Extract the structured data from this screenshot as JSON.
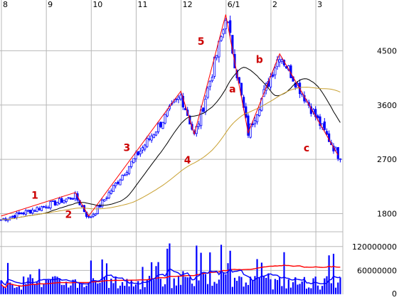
{
  "chart_data": {
    "type": "candlestick",
    "x_labels": [
      "8",
      "9",
      "10",
      "11",
      "12",
      "6/1",
      "2",
      "3"
    ],
    "price_axis": {
      "ticks": [
        {
          "label": "4500",
          "value": 4500
        },
        {
          "label": "3600",
          "value": 3600
        },
        {
          "label": "2700",
          "value": 2700
        },
        {
          "label": "1800",
          "value": 1800
        }
      ],
      "ylim": [
        1500,
        5200
      ]
    },
    "volume_axis": {
      "ticks": [
        {
          "label": "120000000",
          "value": 120000000
        },
        {
          "label": "60000000",
          "value": 60000000
        },
        {
          "label": "0",
          "value": 0
        }
      ]
    },
    "wave_labels": [
      {
        "text": "1",
        "x": 15,
        "y": 2050
      },
      {
        "text": "2",
        "x": 30,
        "y": 1730
      },
      {
        "text": "3",
        "x": 56,
        "y": 2840
      },
      {
        "text": "4",
        "x": 83,
        "y": 2630
      },
      {
        "text": "5",
        "x": 89,
        "y": 4600
      },
      {
        "text": "a",
        "x": 103,
        "y": 3810
      },
      {
        "text": "b",
        "x": 115,
        "y": 4300
      },
      {
        "text": "c",
        "x": 136,
        "y": 2830
      }
    ],
    "wave_lines": [
      [
        [
          0,
          1760
        ],
        [
          33,
          2150
        ],
        [
          39,
          1760
        ],
        [
          80,
          3830
        ],
        [
          86,
          3120
        ],
        [
          100,
          5100
        ],
        [
          110,
          3140
        ],
        [
          124,
          4450
        ],
        [
          150,
          2770
        ]
      ]
    ],
    "colors": {
      "axis_text": "#000000",
      "candle": "#0000ff",
      "wave": "#ff0000",
      "wave_label": "#cc0000",
      "ma_short": "#000000",
      "ma_long": "#c8a030",
      "vol_bar": "#0000ff",
      "vol_line_short": "#0000ff",
      "vol_line_long": "#ff0000",
      "grid": "#b8b8b8"
    }
  }
}
